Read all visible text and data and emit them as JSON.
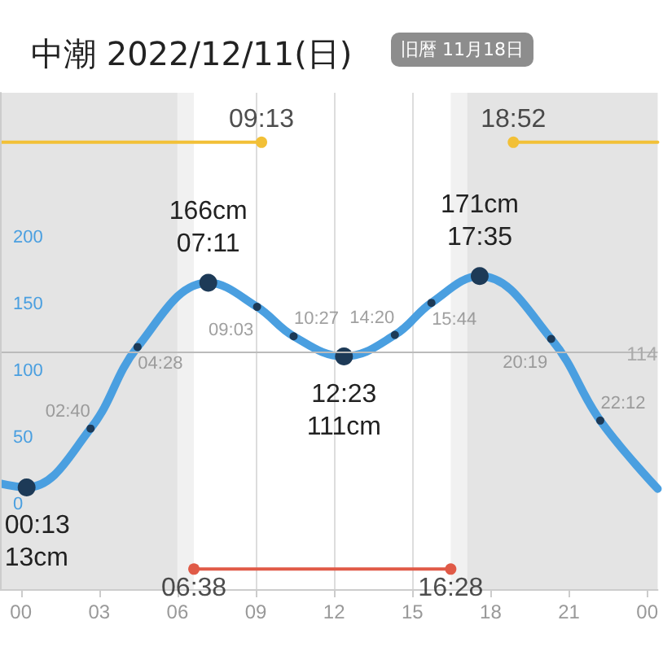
{
  "chart_data": {
    "type": "line",
    "title": "中潮 2022/12/11(日)",
    "subtitle": "旧暦 11月18日",
    "series": [
      {
        "color": "#4a9fe0",
        "x": [
          -0.8,
          0.22,
          2.67,
          4.47,
          7.18,
          9.05,
          10.45,
          12.38,
          14.33,
          15.73,
          17.58,
          20.32,
          22.2,
          24.4
        ],
        "values": [
          16,
          13,
          57,
          118,
          166,
          148,
          126,
          111,
          127,
          151,
          171,
          124,
          63,
          12
        ],
        "value_labels": [
          null,
          "00:13\n13cm",
          null,
          null,
          "166cm\n07:11",
          null,
          null,
          "12:23\n111cm",
          null,
          null,
          "171cm\n17:35",
          null,
          null,
          null
        ]
      },
      {
        "color": "#f2c037",
        "x": [
          -0.8,
          9.22
        ],
        "values": [
          271,
          271
        ]
      },
      {
        "color": "#f2c037",
        "x": [
          18.87,
          24.4
        ],
        "values": [
          271,
          271
        ]
      },
      {
        "color": "#e05a47",
        "x": [
          6.63,
          16.47
        ],
        "values": [
          -48,
          -48
        ]
      }
    ],
    "annotations": [
      {
        "text": "02:40",
        "x": 2.67,
        "y": 57
      },
      {
        "text": "04:28",
        "x": 4.47,
        "y": 118
      },
      {
        "text": "09:03",
        "x": 9.05,
        "y": 148
      },
      {
        "text": "10:27",
        "x": 10.45,
        "y": 126
      },
      {
        "text": "14:20",
        "x": 14.33,
        "y": 127
      },
      {
        "text": "15:44",
        "x": 15.73,
        "y": 151
      },
      {
        "text": "20:19",
        "x": 20.32,
        "y": 124
      },
      {
        "text": "22:12",
        "x": 22.2,
        "y": 63
      },
      {
        "text": "09:13",
        "x": 9.22,
        "y": 271
      },
      {
        "text": "18:52",
        "x": 18.87,
        "y": 271
      },
      {
        "text": "06:38",
        "x": 6.63,
        "y": -48
      },
      {
        "text": "16:28",
        "x": 16.47,
        "y": -48
      }
    ],
    "xlim": [
      -0.8,
      24.4
    ],
    "xticks": [
      {
        "value": 0,
        "label": "00"
      },
      {
        "value": 3,
        "label": "03"
      },
      {
        "value": 6,
        "label": "06"
      },
      {
        "value": 9,
        "label": "09"
      },
      {
        "value": 12,
        "label": "12"
      },
      {
        "value": 15,
        "label": "15"
      },
      {
        "value": 18,
        "label": "18"
      },
      {
        "value": 21,
        "label": "21"
      },
      {
        "value": 24,
        "label": "00"
      }
    ],
    "ylim": [
      -63,
      308
    ],
    "yticks": [
      0,
      50,
      100,
      150,
      200
    ],
    "ref_lines": [
      {
        "axis": "y",
        "value": 114,
        "label": "114",
        "color": "#bbbbbb"
      }
    ],
    "bands": [
      {
        "axis": "x",
        "from": -0.8,
        "to": 6.0,
        "color": "#e4e4e4"
      },
      {
        "axis": "x",
        "from": 6.0,
        "to": 6.63,
        "color": "#f1f1f1"
      },
      {
        "axis": "x",
        "from": 16.47,
        "to": 17.1,
        "color": "#f1f1f1"
      },
      {
        "axis": "x",
        "from": 17.1,
        "to": 24.4,
        "color": "#e4e4e4"
      }
    ],
    "grid": "x",
    "marker": "circle"
  }
}
